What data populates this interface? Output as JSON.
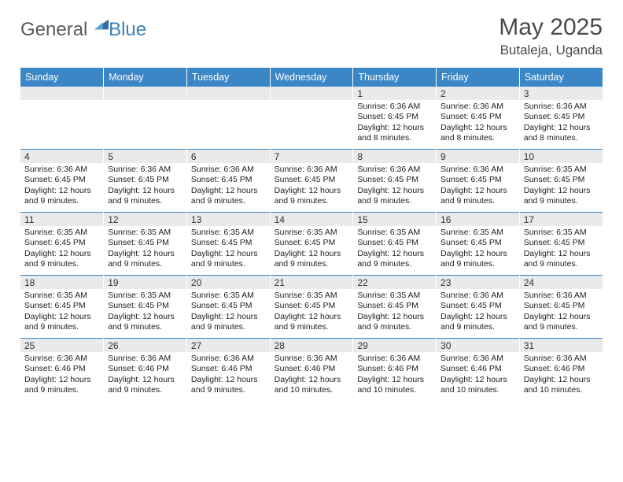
{
  "logo": {
    "word1": "General",
    "word2": "Blue"
  },
  "header": {
    "title": "May 2025",
    "location": "Butaleja, Uganda"
  },
  "colors": {
    "header_bg": "#3b86c4",
    "header_text": "#ffffff",
    "daynum_bg": "#e9eaeb",
    "rule": "#3b86c4",
    "logo_gray": "#5a5a5a",
    "logo_blue": "#3b7fb5",
    "title_color": "#4a4a4a",
    "body_text": "#222222",
    "background": "#ffffff"
  },
  "fonts": {
    "day_header_pt": 12.5,
    "daynum_pt": 12,
    "body_pt": 10.5,
    "title_pt": 30,
    "subtitle_pt": 17,
    "logo_pt": 24
  },
  "day_headers": [
    "Sunday",
    "Monday",
    "Tuesday",
    "Wednesday",
    "Thursday",
    "Friday",
    "Saturday"
  ],
  "weeks": [
    [
      {
        "empty": true
      },
      {
        "empty": true
      },
      {
        "empty": true
      },
      {
        "empty": true
      },
      {
        "n": "1",
        "sunrise": "Sunrise: 6:36 AM",
        "sunset": "Sunset: 6:45 PM",
        "daylight": "Daylight: 12 hours and 8 minutes."
      },
      {
        "n": "2",
        "sunrise": "Sunrise: 6:36 AM",
        "sunset": "Sunset: 6:45 PM",
        "daylight": "Daylight: 12 hours and 8 minutes."
      },
      {
        "n": "3",
        "sunrise": "Sunrise: 6:36 AM",
        "sunset": "Sunset: 6:45 PM",
        "daylight": "Daylight: 12 hours and 8 minutes."
      }
    ],
    [
      {
        "n": "4",
        "sunrise": "Sunrise: 6:36 AM",
        "sunset": "Sunset: 6:45 PM",
        "daylight": "Daylight: 12 hours and 9 minutes."
      },
      {
        "n": "5",
        "sunrise": "Sunrise: 6:36 AM",
        "sunset": "Sunset: 6:45 PM",
        "daylight": "Daylight: 12 hours and 9 minutes."
      },
      {
        "n": "6",
        "sunrise": "Sunrise: 6:36 AM",
        "sunset": "Sunset: 6:45 PM",
        "daylight": "Daylight: 12 hours and 9 minutes."
      },
      {
        "n": "7",
        "sunrise": "Sunrise: 6:36 AM",
        "sunset": "Sunset: 6:45 PM",
        "daylight": "Daylight: 12 hours and 9 minutes."
      },
      {
        "n": "8",
        "sunrise": "Sunrise: 6:36 AM",
        "sunset": "Sunset: 6:45 PM",
        "daylight": "Daylight: 12 hours and 9 minutes."
      },
      {
        "n": "9",
        "sunrise": "Sunrise: 6:36 AM",
        "sunset": "Sunset: 6:45 PM",
        "daylight": "Daylight: 12 hours and 9 minutes."
      },
      {
        "n": "10",
        "sunrise": "Sunrise: 6:35 AM",
        "sunset": "Sunset: 6:45 PM",
        "daylight": "Daylight: 12 hours and 9 minutes."
      }
    ],
    [
      {
        "n": "11",
        "sunrise": "Sunrise: 6:35 AM",
        "sunset": "Sunset: 6:45 PM",
        "daylight": "Daylight: 12 hours and 9 minutes."
      },
      {
        "n": "12",
        "sunrise": "Sunrise: 6:35 AM",
        "sunset": "Sunset: 6:45 PM",
        "daylight": "Daylight: 12 hours and 9 minutes."
      },
      {
        "n": "13",
        "sunrise": "Sunrise: 6:35 AM",
        "sunset": "Sunset: 6:45 PM",
        "daylight": "Daylight: 12 hours and 9 minutes."
      },
      {
        "n": "14",
        "sunrise": "Sunrise: 6:35 AM",
        "sunset": "Sunset: 6:45 PM",
        "daylight": "Daylight: 12 hours and 9 minutes."
      },
      {
        "n": "15",
        "sunrise": "Sunrise: 6:35 AM",
        "sunset": "Sunset: 6:45 PM",
        "daylight": "Daylight: 12 hours and 9 minutes."
      },
      {
        "n": "16",
        "sunrise": "Sunrise: 6:35 AM",
        "sunset": "Sunset: 6:45 PM",
        "daylight": "Daylight: 12 hours and 9 minutes."
      },
      {
        "n": "17",
        "sunrise": "Sunrise: 6:35 AM",
        "sunset": "Sunset: 6:45 PM",
        "daylight": "Daylight: 12 hours and 9 minutes."
      }
    ],
    [
      {
        "n": "18",
        "sunrise": "Sunrise: 6:35 AM",
        "sunset": "Sunset: 6:45 PM",
        "daylight": "Daylight: 12 hours and 9 minutes."
      },
      {
        "n": "19",
        "sunrise": "Sunrise: 6:35 AM",
        "sunset": "Sunset: 6:45 PM",
        "daylight": "Daylight: 12 hours and 9 minutes."
      },
      {
        "n": "20",
        "sunrise": "Sunrise: 6:35 AM",
        "sunset": "Sunset: 6:45 PM",
        "daylight": "Daylight: 12 hours and 9 minutes."
      },
      {
        "n": "21",
        "sunrise": "Sunrise: 6:35 AM",
        "sunset": "Sunset: 6:45 PM",
        "daylight": "Daylight: 12 hours and 9 minutes."
      },
      {
        "n": "22",
        "sunrise": "Sunrise: 6:35 AM",
        "sunset": "Sunset: 6:45 PM",
        "daylight": "Daylight: 12 hours and 9 minutes."
      },
      {
        "n": "23",
        "sunrise": "Sunrise: 6:36 AM",
        "sunset": "Sunset: 6:45 PM",
        "daylight": "Daylight: 12 hours and 9 minutes."
      },
      {
        "n": "24",
        "sunrise": "Sunrise: 6:36 AM",
        "sunset": "Sunset: 6:45 PM",
        "daylight": "Daylight: 12 hours and 9 minutes."
      }
    ],
    [
      {
        "n": "25",
        "sunrise": "Sunrise: 6:36 AM",
        "sunset": "Sunset: 6:46 PM",
        "daylight": "Daylight: 12 hours and 9 minutes."
      },
      {
        "n": "26",
        "sunrise": "Sunrise: 6:36 AM",
        "sunset": "Sunset: 6:46 PM",
        "daylight": "Daylight: 12 hours and 9 minutes."
      },
      {
        "n": "27",
        "sunrise": "Sunrise: 6:36 AM",
        "sunset": "Sunset: 6:46 PM",
        "daylight": "Daylight: 12 hours and 9 minutes."
      },
      {
        "n": "28",
        "sunrise": "Sunrise: 6:36 AM",
        "sunset": "Sunset: 6:46 PM",
        "daylight": "Daylight: 12 hours and 10 minutes."
      },
      {
        "n": "29",
        "sunrise": "Sunrise: 6:36 AM",
        "sunset": "Sunset: 6:46 PM",
        "daylight": "Daylight: 12 hours and 10 minutes."
      },
      {
        "n": "30",
        "sunrise": "Sunrise: 6:36 AM",
        "sunset": "Sunset: 6:46 PM",
        "daylight": "Daylight: 12 hours and 10 minutes."
      },
      {
        "n": "31",
        "sunrise": "Sunrise: 6:36 AM",
        "sunset": "Sunset: 6:46 PM",
        "daylight": "Daylight: 12 hours and 10 minutes."
      }
    ]
  ]
}
